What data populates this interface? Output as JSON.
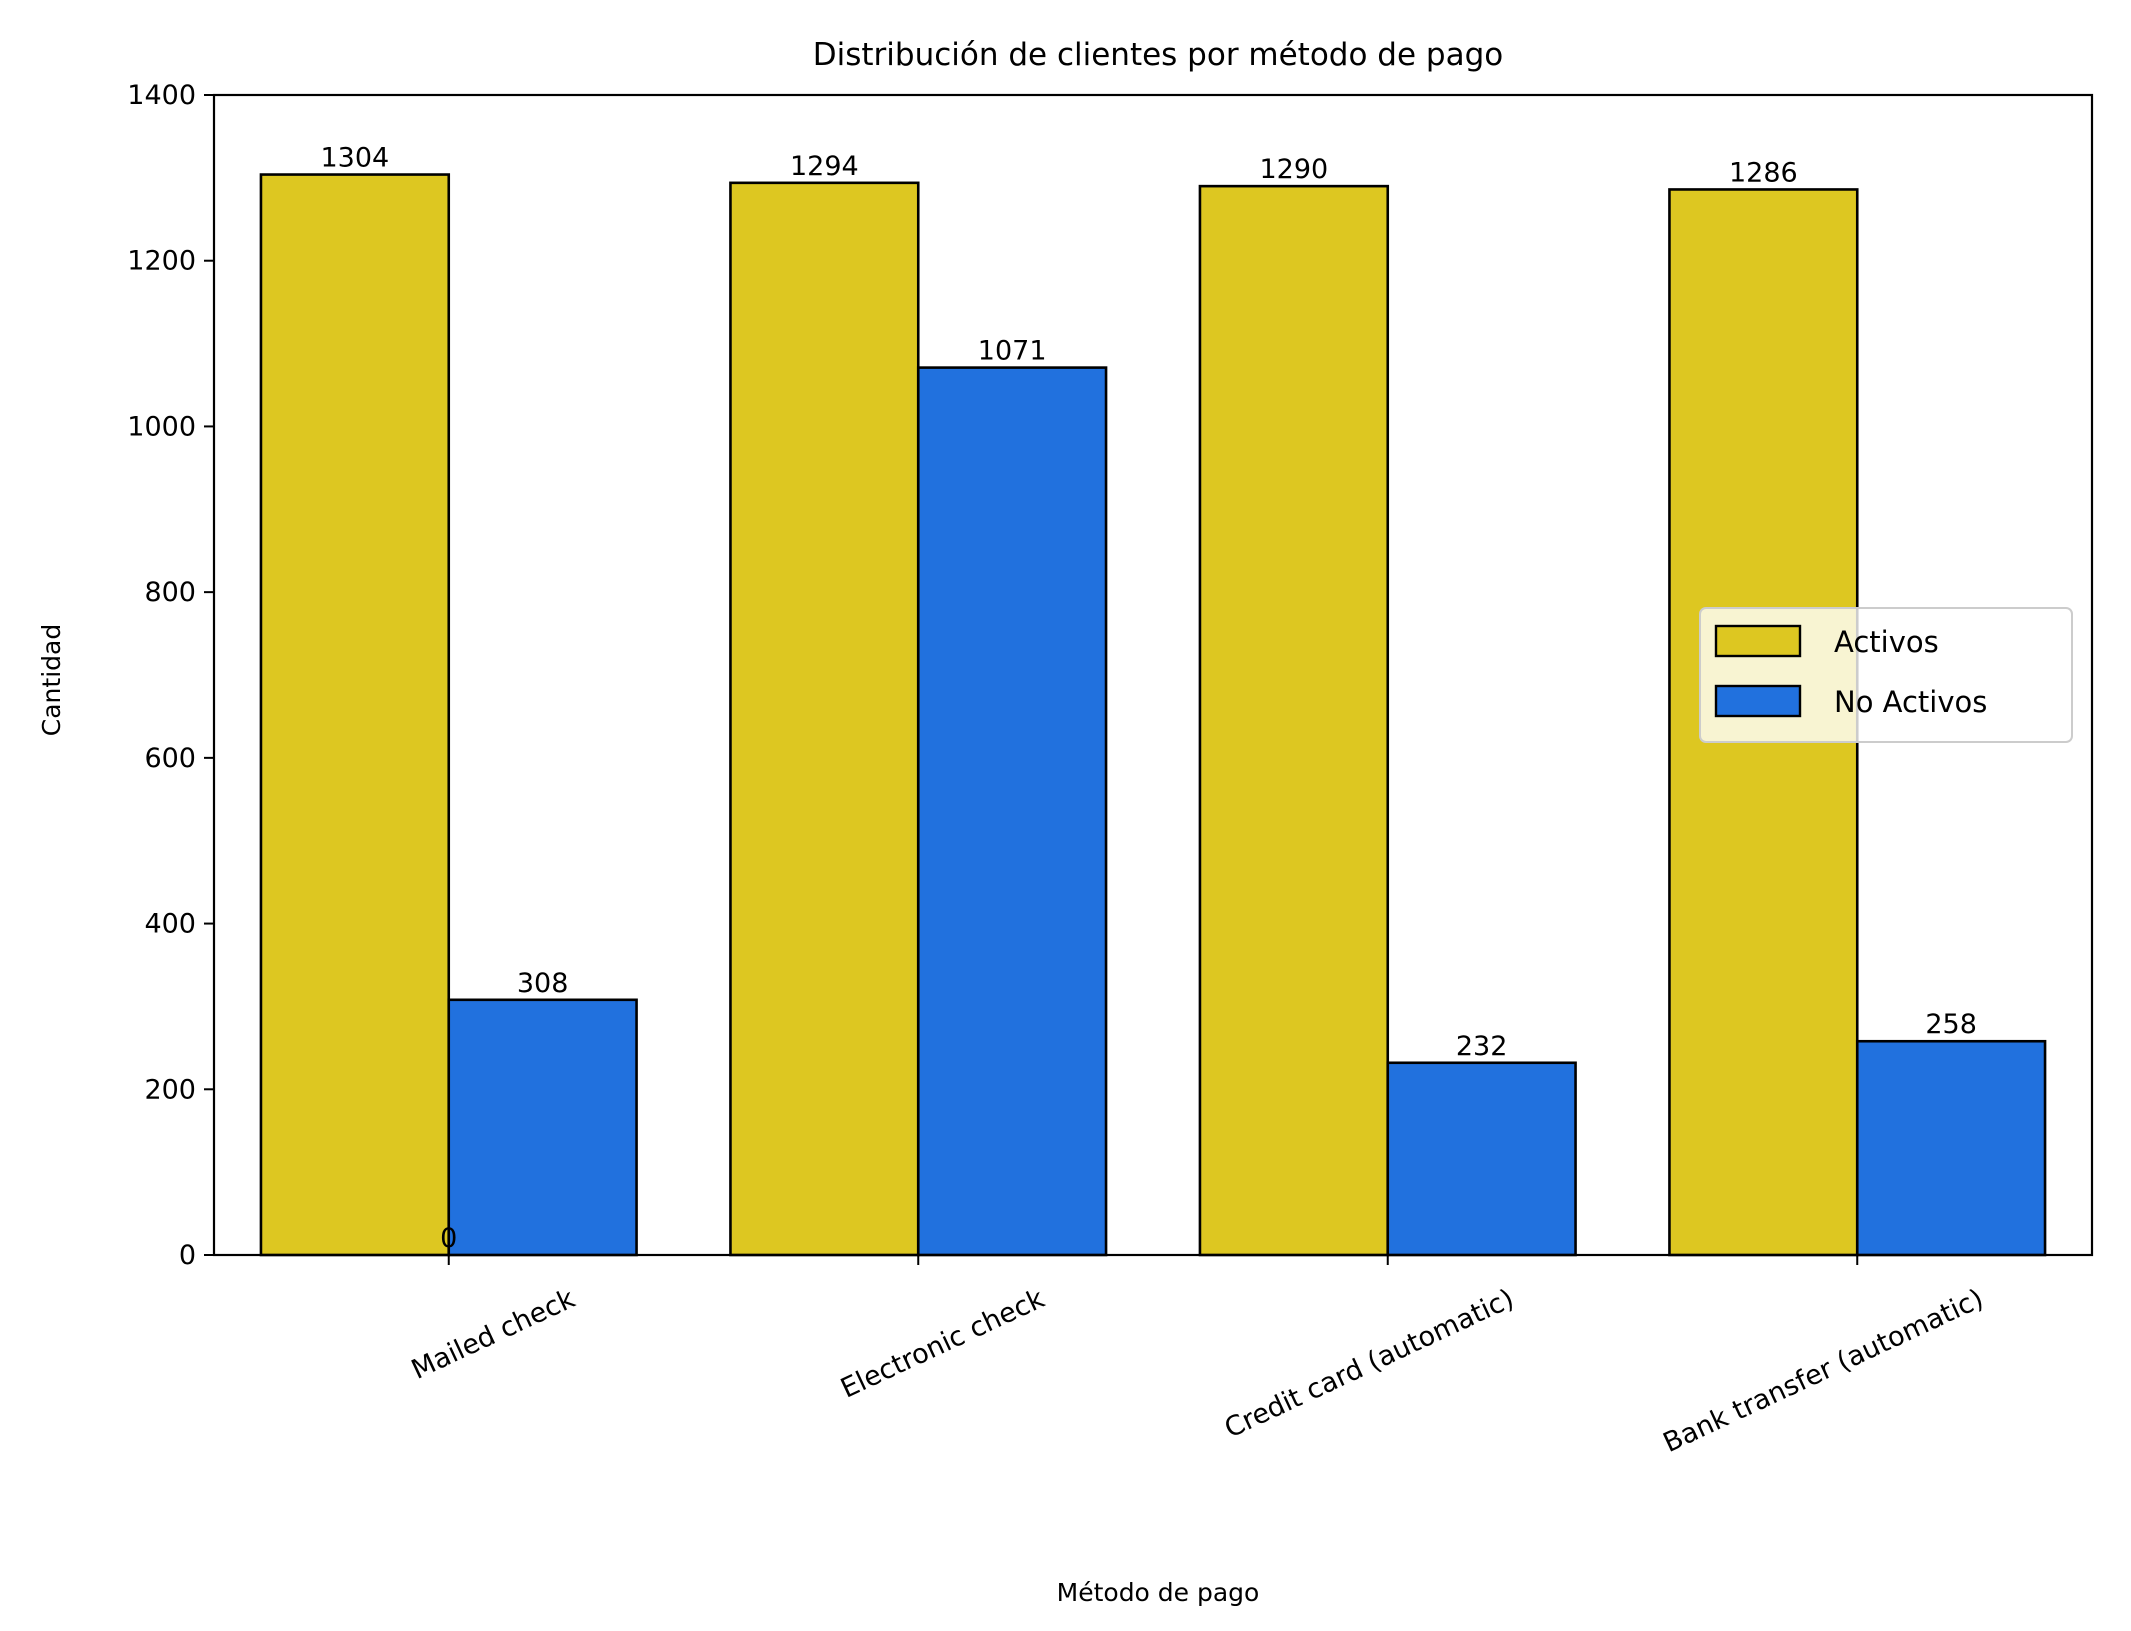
{
  "chart_data": {
    "type": "bar",
    "title": "Distribución de clientes por método de pago",
    "xlabel": "Método de pago",
    "ylabel": "Cantidad",
    "categories": [
      "Mailed check",
      "Electronic check",
      "Credit card (automatic)",
      "Bank transfer (automatic)"
    ],
    "series": [
      {
        "name": "Activos",
        "values": [
          1304,
          1294,
          1290,
          1286
        ],
        "color": "#ddc721"
      },
      {
        "name": "No Activos",
        "values": [
          308,
          1071,
          232,
          258
        ],
        "color": "#2171de"
      }
    ],
    "data_labels": [
      [
        "1304",
        "1294",
        "1290",
        "1286"
      ],
      [
        "308",
        "1071",
        "232",
        "258"
      ]
    ],
    "extra_label": "0",
    "ylim": [
      0,
      1400
    ],
    "yticks": [
      0,
      200,
      400,
      600,
      800,
      1000,
      1200,
      1400
    ],
    "tick_rotation_deg": -25,
    "grid": false,
    "legend_position": "center-right",
    "edge_color": "#000000"
  }
}
